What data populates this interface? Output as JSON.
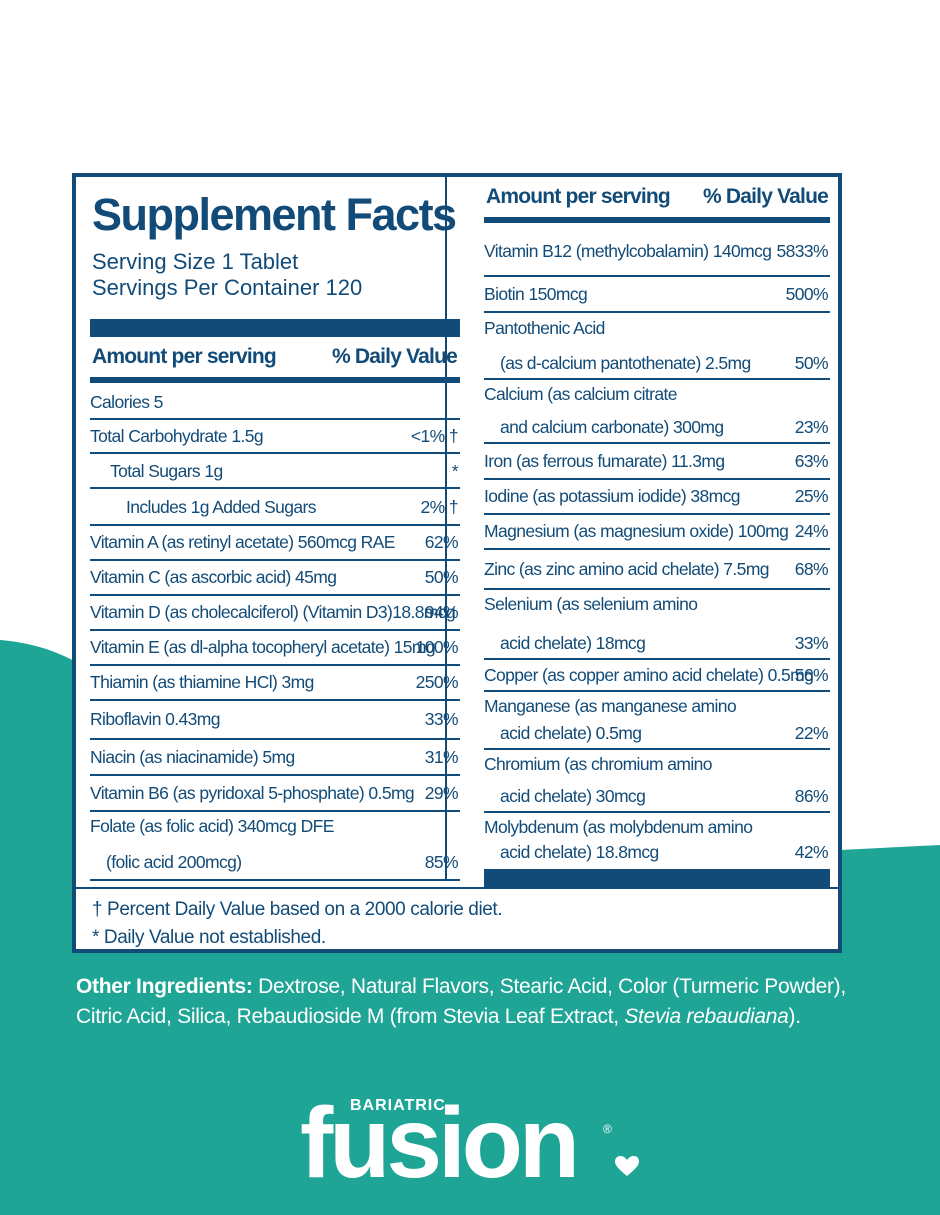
{
  "colors": {
    "navy": "#124b78",
    "teal": "#1fa596",
    "white": "#ffffff"
  },
  "title": "Supplement Facts",
  "serving_size": "Serving Size 1 Tablet",
  "servings_per_container": "Servings Per Container 120",
  "left_header": {
    "amount": "Amount per serving",
    "dv": "% Daily Value"
  },
  "right_header": {
    "amount": "Amount per serving",
    "dv": "% Daily Value"
  },
  "left_rows": [
    {
      "name": "Calories 5",
      "dv": ""
    },
    {
      "name": "Total Carbohydrate 1.5g",
      "dv": "<1% †"
    },
    {
      "name": "Total Sugars 1g",
      "dv": "*"
    },
    {
      "name": "Includes 1g Added Sugars",
      "dv": "2% †"
    },
    {
      "name": "Vitamin A (as retinyl acetate) 560mcg RAE",
      "dv": "62%"
    },
    {
      "name": "Vitamin C (as ascorbic acid) 45mg",
      "dv": "50%"
    },
    {
      "name": "Vitamin D (as cholecalciferol) (Vitamin D3)18.8mcg",
      "dv": "94%"
    },
    {
      "name": "Vitamin E (as dl-alpha tocopheryl acetate) 15mg",
      "dv": "100%"
    },
    {
      "name": "Thiamin (as thiamine HCl) 3mg",
      "dv": "250%"
    },
    {
      "name": "Riboflavin 0.43mg",
      "dv": "33%"
    },
    {
      "name": "Niacin (as niacinamide) 5mg",
      "dv": "31%"
    },
    {
      "name": "Vitamin B6 (as pyridoxal 5-phosphate) 0.5mg",
      "dv": "29%"
    },
    {
      "name": "Folate (as folic acid) 340mcg DFE",
      "name2": "(folic acid 200mcg)",
      "dv": "85%"
    }
  ],
  "right_rows": [
    {
      "name": "Vitamin B12 (methylcobalamin) 140mcg",
      "dv": "5833%"
    },
    {
      "name": "Biotin 150mcg",
      "dv": "500%"
    },
    {
      "name": "Pantothenic Acid",
      "name2": "(as d-calcium pantothenate) 2.5mg",
      "dv": "50%"
    },
    {
      "name": "Calcium (as calcium citrate",
      "name2": "and calcium carbonate) 300mg",
      "dv": "23%"
    },
    {
      "name": "Iron (as ferrous fumarate) 11.3mg",
      "dv": "63%"
    },
    {
      "name": "Iodine (as potassium iodide) 38mcg",
      "dv": "25%"
    },
    {
      "name": "Magnesium (as magnesium oxide) 100mg",
      "dv": "24%"
    },
    {
      "name": "Zinc (as zinc amino acid chelate) 7.5mg",
      "dv": "68%"
    },
    {
      "name": "Selenium (as selenium amino",
      "name2": "acid chelate) 18mcg",
      "dv": "33%"
    },
    {
      "name": "Copper (as copper amino acid chelate) 0.5mg",
      "dv": "56%"
    },
    {
      "name": "Manganese (as manganese amino",
      "name2": "acid chelate) 0.5mg",
      "dv": "22%"
    },
    {
      "name": "Chromium (as chromium amino",
      "name2": "acid chelate) 30mcg",
      "dv": "86%"
    },
    {
      "name": "Molybdenum (as molybdenum amino",
      "name2": "acid chelate) 18.8mcg",
      "dv": "42%"
    }
  ],
  "footnotes": [
    "† Percent Daily Value based on a 2000 calorie diet.",
    "* Daily Value not established."
  ],
  "other_ingredients": {
    "label": "Other Ingredients:",
    "text": " Dextrose, Natural Flavors, Stearic Acid, Color (Turmeric Powder), Citric Acid, Silica, Rebaudioside M (from Stevia Leaf Extract, ",
    "italic": "Stevia rebaudiana",
    "end": ")."
  },
  "brand": {
    "small": "BARIATRIC",
    "big": "fusion",
    "reg": "®",
    "heart_icon": "heart-icon"
  }
}
